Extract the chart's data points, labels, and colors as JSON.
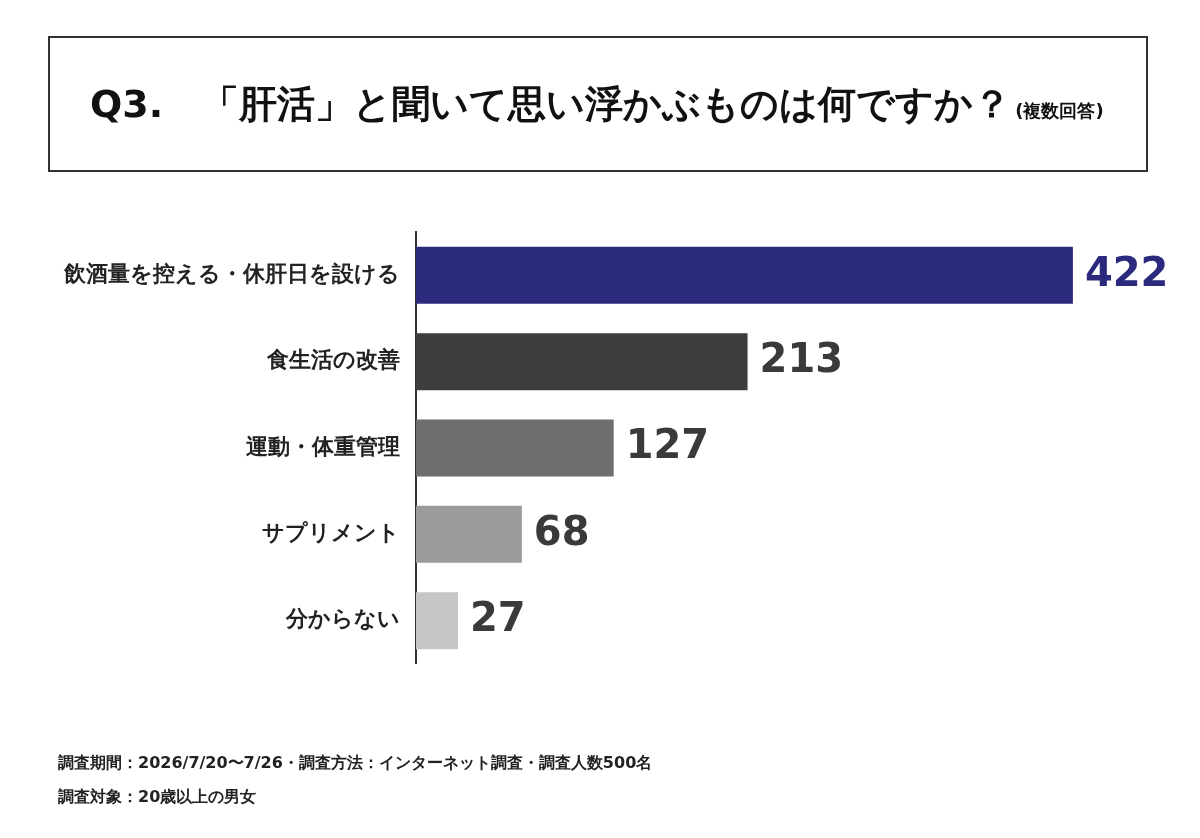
{
  "chart_data": {
    "type": "bar",
    "orientation": "horizontal",
    "title": "Q3.　「肝活」と聞いて思い浮かぶものは何ですか？",
    "subtitle": "(複数回答)",
    "categories": [
      "飲酒量を控える・休肝日を設ける",
      "食生活の改善",
      "運動・体重管理",
      "サプリメント",
      "分からない"
    ],
    "values": [
      422,
      213,
      127,
      68,
      27
    ],
    "colors": [
      "#2b2a7c",
      "#3d3d3d",
      "#6f6f6f",
      "#9b9b9b",
      "#c5c5c5"
    ],
    "data_labels": true,
    "grid": false,
    "legend": false,
    "annotations": [
      "調査期間：2026/7/20〜7/26・調査方法：インターネット調査・調査人数500名",
      "調査対象：20歳以上の男女"
    ]
  }
}
